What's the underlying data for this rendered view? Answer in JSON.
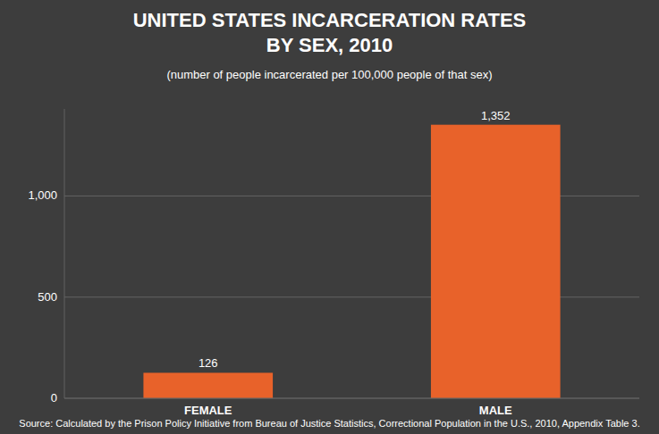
{
  "chart_data": {
    "type": "bar",
    "title": [
      "UNITED STATES INCARCERATION RATES",
      "BY SEX, 2010"
    ],
    "subtitle": "(number of people incarcerated per 100,000 people of that sex)",
    "source": "Source: Calculated by the Prison Policy Initiative from Bureau of Justice Statistics, Correctional Population in the U.S., 2010, Appendix Table 3.",
    "categories": [
      "FEMALE",
      "MALE"
    ],
    "values": [
      126,
      1352
    ],
    "value_labels": [
      "126",
      "1,352"
    ],
    "data_labels": true,
    "color": "#e8622a",
    "ylim": [
      0,
      1430
    ],
    "yticks": [
      0,
      500,
      {
        "value": 1000,
        "label": "1,000"
      }
    ],
    "grid": true
  }
}
